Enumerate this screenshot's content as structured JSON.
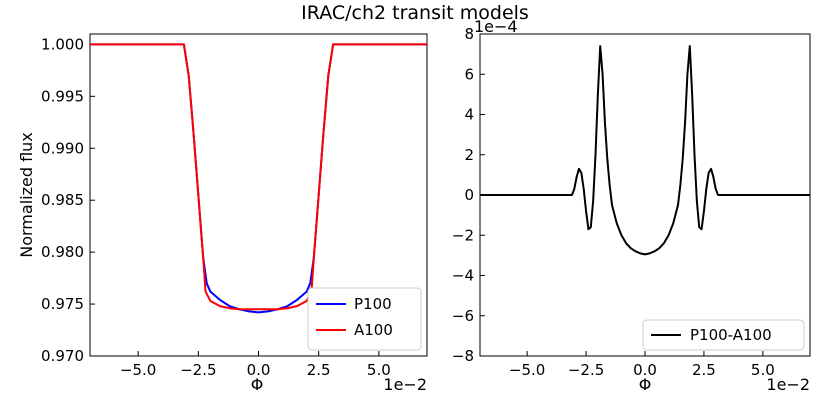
{
  "figure": {
    "title": "IRAC/ch2 transit models"
  },
  "chart_data": [
    {
      "type": "line",
      "xlabel": "Φ",
      "ylabel": "Normalized flux",
      "x_offset_text": "1e−2",
      "xlim": [
        -7,
        7
      ],
      "ylim": [
        0.97,
        1.001
      ],
      "xticks": [
        -5.0,
        -2.5,
        0.0,
        2.5,
        5.0
      ],
      "xtick_labels": [
        "−5.0",
        "−2.5",
        "0.0",
        "2.5",
        "5.0"
      ],
      "yticks": [
        0.97,
        0.975,
        0.98,
        0.985,
        0.99,
        0.995,
        1.0
      ],
      "ytick_labels": [
        "0.970",
        "0.975",
        "0.980",
        "0.985",
        "0.990",
        "0.995",
        "1.000"
      ],
      "grid": false,
      "legend_position": "lower-right",
      "series": [
        {
          "name": "P100",
          "color": "#0000ff",
          "x": [
            -7.0,
            -3.1,
            -2.9,
            -2.7,
            -2.5,
            -2.3,
            -2.15,
            -2.0,
            -1.6,
            -1.2,
            -0.8,
            -0.4,
            0.0,
            0.4,
            0.8,
            1.2,
            1.6,
            2.0,
            2.15,
            2.3,
            2.5,
            2.7,
            2.9,
            3.1,
            7.0
          ],
          "y": [
            1.0,
            1.0,
            0.997,
            0.9915,
            0.9855,
            0.9795,
            0.977,
            0.9762,
            0.9754,
            0.9748,
            0.9745,
            0.9743,
            0.9742,
            0.9743,
            0.9745,
            0.9748,
            0.9754,
            0.9762,
            0.977,
            0.9795,
            0.9855,
            0.9915,
            0.997,
            1.0,
            1.0
          ]
        },
        {
          "name": "A100",
          "color": "#ff0000",
          "x": [
            -7.0,
            -3.1,
            -2.9,
            -2.7,
            -2.5,
            -2.3,
            -2.2,
            -2.0,
            -1.6,
            -1.2,
            -0.8,
            -0.4,
            0.0,
            0.4,
            0.8,
            1.2,
            1.6,
            2.0,
            2.2,
            2.3,
            2.5,
            2.7,
            2.9,
            3.1,
            7.0
          ],
          "y": [
            1.0,
            1.0,
            0.997,
            0.9915,
            0.9855,
            0.9795,
            0.9762,
            0.9753,
            0.9748,
            0.9746,
            0.9745,
            0.9745,
            0.9745,
            0.9745,
            0.9745,
            0.9746,
            0.9748,
            0.9753,
            0.9762,
            0.9795,
            0.9855,
            0.9915,
            0.997,
            1.0,
            1.0
          ]
        }
      ]
    },
    {
      "type": "line",
      "xlabel": "Φ",
      "ylabel": "",
      "x_offset_text": "1e−2",
      "y_offset_text": "1e−4",
      "xlim": [
        -7,
        7
      ],
      "ylim": [
        -8,
        8
      ],
      "xticks": [
        -5.0,
        -2.5,
        0.0,
        2.5,
        5.0
      ],
      "xtick_labels": [
        "−5.0",
        "−2.5",
        "0.0",
        "2.5",
        "5.0"
      ],
      "yticks": [
        -8,
        -6,
        -4,
        -2,
        0,
        2,
        4,
        6,
        8
      ],
      "ytick_labels": [
        "−8",
        "−6",
        "−4",
        "−2",
        "0",
        "2",
        "4",
        "6",
        "8"
      ],
      "grid": false,
      "legend_position": "lower-right",
      "series": [
        {
          "name": "P100-A100",
          "color": "#000000",
          "x": [
            -7.0,
            -3.1,
            -3.0,
            -2.9,
            -2.8,
            -2.7,
            -2.6,
            -2.5,
            -2.4,
            -2.3,
            -2.2,
            -2.1,
            -2.0,
            -1.9,
            -1.8,
            -1.7,
            -1.6,
            -1.5,
            -1.4,
            -1.2,
            -1.0,
            -0.8,
            -0.6,
            -0.4,
            -0.2,
            0.0,
            0.2,
            0.4,
            0.6,
            0.8,
            1.0,
            1.2,
            1.4,
            1.5,
            1.6,
            1.7,
            1.8,
            1.9,
            2.0,
            2.1,
            2.2,
            2.3,
            2.4,
            2.5,
            2.6,
            2.7,
            2.8,
            2.9,
            3.0,
            3.1,
            7.0
          ],
          "y": [
            0,
            0,
            0.3,
            0.9,
            1.3,
            1.1,
            0.3,
            -0.8,
            -1.7,
            -1.6,
            -0.3,
            2.0,
            5.0,
            7.4,
            6.0,
            3.6,
            1.8,
            0.5,
            -0.5,
            -1.4,
            -2.0,
            -2.4,
            -2.65,
            -2.8,
            -2.9,
            -2.95,
            -2.9,
            -2.8,
            -2.65,
            -2.4,
            -2.0,
            -1.4,
            -0.5,
            0.5,
            1.8,
            3.6,
            6.0,
            7.4,
            5.0,
            2.0,
            -0.3,
            -1.6,
            -1.7,
            -0.8,
            0.3,
            1.1,
            1.3,
            0.9,
            0.3,
            0,
            0
          ]
        }
      ]
    }
  ]
}
